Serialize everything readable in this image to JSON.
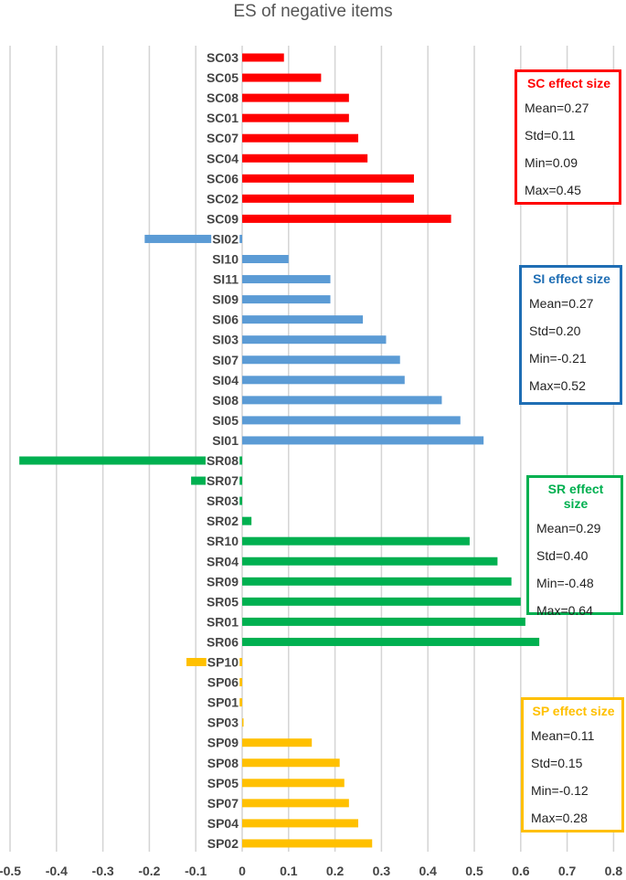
{
  "chart_data": {
    "type": "bar",
    "orientation": "horizontal",
    "title": "ES of negative items",
    "xlim": [
      -0.5,
      0.8
    ],
    "x_ticks": [
      "-0.5",
      "-0.4",
      "-0.3",
      "-0.2",
      "-0.1",
      "0",
      "0.1",
      "0.2",
      "0.3",
      "0.4",
      "0.5",
      "0.6",
      "0.7",
      "0.8"
    ],
    "grid": "vertical",
    "categories": [
      "SC03",
      "SC05",
      "SC08",
      "SC01",
      "SC07",
      "SC04",
      "SC06",
      "SC02",
      "SC09",
      "SI02",
      "SI10",
      "SI11",
      "SI09",
      "SI06",
      "SI03",
      "SI07",
      "SI04",
      "SI08",
      "SI05",
      "SI01",
      "SR08",
      "SR07",
      "SR03",
      "SR02",
      "SR10",
      "SR04",
      "SR09",
      "SR05",
      "SR01",
      "SR06",
      "SP10",
      "SP06",
      "SP01",
      "SP03",
      "SP09",
      "SP08",
      "SP05",
      "SP07",
      "SP04",
      "SP02"
    ],
    "values": [
      0.09,
      0.17,
      0.23,
      0.23,
      0.25,
      0.27,
      0.37,
      0.37,
      0.45,
      -0.21,
      0.1,
      0.19,
      0.19,
      0.26,
      0.31,
      0.34,
      0.35,
      0.43,
      0.47,
      0.52,
      -0.48,
      -0.11,
      -0.03,
      0.02,
      0.49,
      0.55,
      0.58,
      0.6,
      0.61,
      0.64,
      -0.12,
      -0.05,
      -0.04,
      0.0,
      0.15,
      0.21,
      0.22,
      0.23,
      0.25,
      0.28
    ],
    "groups": [
      {
        "name": "SC",
        "color": "#ff0000",
        "start": 0,
        "count": 9
      },
      {
        "name": "SI",
        "color": "#5b9bd5",
        "start": 9,
        "count": 11
      },
      {
        "name": "SR",
        "color": "#00b050",
        "start": 20,
        "count": 10
      },
      {
        "name": "SP",
        "color": "#ffc000",
        "start": 30,
        "count": 10
      }
    ]
  },
  "stat_boxes": {
    "sc": {
      "title": "SC effect size",
      "color": "#ff0000",
      "mean": "Mean=0.27",
      "std": "Std=0.11",
      "min": "Min=0.09",
      "max": "Max=0.45"
    },
    "si": {
      "title": "SI effect size",
      "color": "#1f6eb4",
      "mean": "Mean=0.27",
      "std": "Std=0.20",
      "min": "Min=-0.21",
      "max": "Max=0.52"
    },
    "sr": {
      "title": "SR effect size",
      "color": "#00b050",
      "mean": "Mean=0.29",
      "std": "Std=0.40",
      "min": "Min=-0.48",
      "max": "Max=0.64"
    },
    "sp": {
      "title": "SP effect size",
      "color": "#ffc000",
      "mean": "Mean=0.11",
      "std": "Std=0.15",
      "min": "Min=-0.12",
      "max": "Max=0.28"
    }
  }
}
